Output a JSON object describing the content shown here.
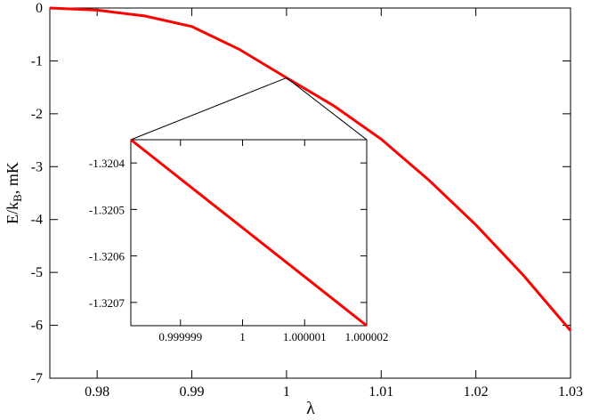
{
  "chart_data": {
    "type": "line",
    "xlabel": "λ",
    "ylabel": {
      "main": "E/k",
      "sub": "B",
      "unit": ", mK"
    },
    "xlim": [
      0.975,
      1.03
    ],
    "ylim": [
      -7,
      0
    ],
    "xticks": [
      0.98,
      0.99,
      1,
      1.01,
      1.02,
      1.03
    ],
    "xtick_labels": [
      "0.98",
      "0.99",
      "1",
      "1.01",
      "1.02",
      "1.03"
    ],
    "yticks": [
      0,
      -1,
      -2,
      -3,
      -4,
      -5,
      -6,
      -7
    ],
    "ytick_labels": [
      "0",
      "-1",
      "-2",
      "-3",
      "-4",
      "-5",
      "-6",
      "-7"
    ],
    "grid": false,
    "series_color": "#ff0000",
    "series": [
      {
        "x": [
          0.975,
          0.98,
          0.985,
          0.99,
          0.995,
          1.0,
          1.005,
          1.01,
          1.015,
          1.02,
          1.025,
          1.03
        ],
        "y": [
          0,
          -0.04,
          -0.15,
          -0.35,
          -0.78,
          -1.32,
          -1.85,
          -2.48,
          -3.25,
          -4.1,
          -5.05,
          -6.1
        ]
      }
    ],
    "inset": {
      "type": "line",
      "xlim": [
        0.9999982,
        1.000002
      ],
      "ylim": [
        -1.32075,
        -1.32035
      ],
      "xticks": [
        0.999999,
        1,
        1.000001,
        1.000002
      ],
      "xtick_labels": [
        "0.999999",
        "1",
        "1.000001",
        "1.000002"
      ],
      "yticks": [
        -1.3204,
        -1.3205,
        -1.3206,
        -1.3207
      ],
      "ytick_labels": [
        "-1.3204",
        "-1.3205",
        "-1.3206",
        "-1.3207"
      ],
      "zoom_point": {
        "x": 1.0,
        "y": -1.32
      },
      "series": [
        {
          "x": [
            0.9999982,
            1.000002
          ],
          "y": [
            -1.32035,
            -1.32075
          ]
        }
      ]
    }
  }
}
